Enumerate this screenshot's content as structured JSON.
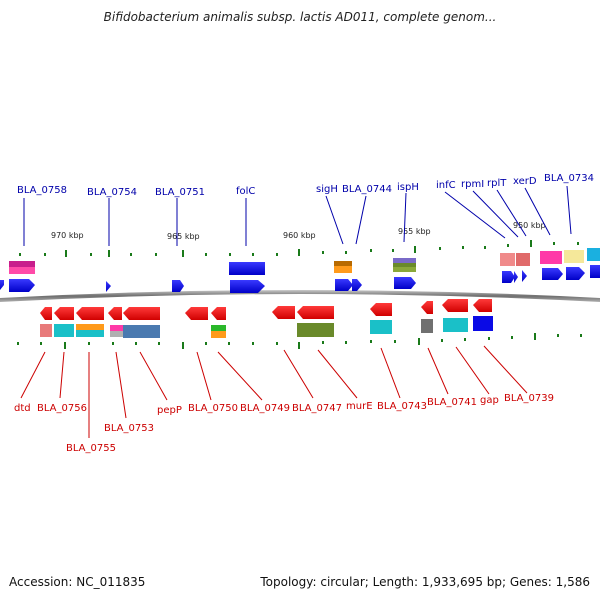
{
  "title": "Bifidobacterium animalis subsp. lactis AD011, complete genom...",
  "footer": {
    "accession": "Accession: NC_011835",
    "topology": "Topology: circular; Length: 1,933,695 bp; Genes: 1,586"
  },
  "kbp_labels": [
    "970 kbp",
    "965 kbp",
    "960 kbp",
    "955 kbp",
    "950 kbp"
  ],
  "top_gene_labels": [
    "BLA_0758",
    "BLA_0754",
    "BLA_0751",
    "folC",
    "sigH",
    "BLA_0744",
    "ispH",
    "infC",
    "rpmI",
    "rplT",
    "xerD",
    "BLA_0734"
  ],
  "bottom_gene_labels": [
    "dtd",
    "BLA_0756",
    "BLA_0755",
    "BLA_0753",
    "pepP",
    "BLA_0750",
    "BLA_0749",
    "BLA_0747",
    "murE",
    "BLA_0743",
    "BLA_0741",
    "gap",
    "BLA_0739"
  ],
  "colors": {
    "forward": "#0a0ae6",
    "reverse": "#e60000",
    "top_label": "#0000aa",
    "bottom_label": "#cc0000",
    "tick": "#1a7a1a",
    "backbone": "#808080"
  }
}
